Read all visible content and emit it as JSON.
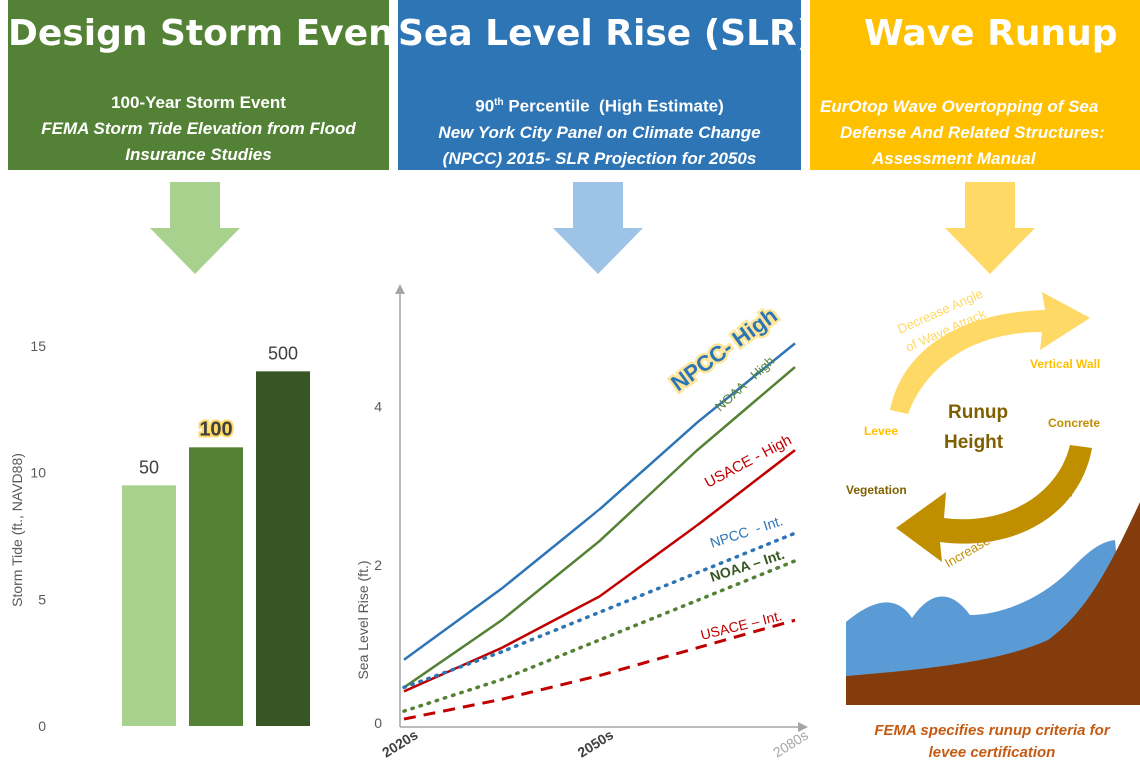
{
  "panels": [
    {
      "title": "Design Storm Event",
      "line1": "100-Year Storm Event",
      "line2": "FEMA Storm Tide Elevation from Flood",
      "line3": "Insurance Studies"
    },
    {
      "title": "Sea Level Rise (SLR)",
      "line1_pre": "90",
      "line1_sup": "th",
      "line1_post": " Percentile  (High Estimate)",
      "line2": "New York City Panel on Climate Change",
      "line3": "(NPCC) 2015- SLR Projection for 2050s"
    },
    {
      "title": "Wave Runup",
      "line1": "EurOtop Wave Overtopping of Sea",
      "line2": "Defense And Related Structures:",
      "line3": "Assessment Manual"
    }
  ],
  "colors": {
    "green_dark": "#538135",
    "blue": "#2e75b6",
    "gold": "#ffc000",
    "arrow_green": "#a9d18e",
    "arrow_blue": "#9dc3e6",
    "arrow_gold": "#ffd966",
    "brown": "#843c0c",
    "water": "#5b9bd5"
  },
  "chart_data": [
    {
      "type": "bar",
      "categories": [
        "50",
        "100",
        "500"
      ],
      "values": [
        9.5,
        11,
        14
      ],
      "data_labels": [
        "50",
        "100",
        "500"
      ],
      "colors": [
        "#a9d18e",
        "#548235",
        "#375623"
      ],
      "ylabel": "Storm Tide (ft., NAVD88)",
      "yticks": [
        0,
        5,
        10,
        15
      ],
      "ylim": [
        0,
        15
      ]
    },
    {
      "type": "line",
      "ylabel": "Sea Level Rise (ft.)",
      "x_tick_labels": [
        "2020s",
        "2050s",
        "2080s"
      ],
      "yticks": [
        0,
        2,
        4
      ],
      "ylim": [
        0,
        5.5
      ],
      "x": [
        0,
        0.25,
        0.5,
        0.75,
        1.0
      ],
      "series": [
        {
          "name": "NPCC- High",
          "style": "solid",
          "color": "#2e75b6",
          "values": [
            0.8,
            1.7,
            2.7,
            3.8,
            4.8
          ]
        },
        {
          "name": "NOAA - High",
          "style": "solid",
          "color": "#548235",
          "values": [
            0.45,
            1.3,
            2.3,
            3.45,
            4.5
          ]
        },
        {
          "name": "USACE - High",
          "style": "solid",
          "color": "#c00000",
          "values": [
            0.4,
            0.95,
            1.6,
            2.5,
            3.45
          ]
        },
        {
          "name": "NPCC  - Int.",
          "style": "dotted",
          "color": "#2e75b6",
          "values": [
            0.45,
            0.9,
            1.4,
            1.9,
            2.4
          ]
        },
        {
          "name": "NOAA – Int.",
          "style": "dotted",
          "color": "#548235",
          "values": [
            0.15,
            0.55,
            1.05,
            1.55,
            2.05
          ]
        },
        {
          "name": "USACE – Int.",
          "style": "dashed",
          "color": "#c00000",
          "values": [
            0.05,
            0.3,
            0.6,
            0.95,
            1.3
          ]
        }
      ]
    }
  ],
  "runup": {
    "decrease_angle": "Decrease Angle",
    "of_wave_attack": "of Wave Attack",
    "vertical_wall": "Vertical Wall",
    "levee": "Levee",
    "runup": "Runup",
    "height": "Height",
    "concrete": "Concrete",
    "vegetation": "Vegetation",
    "increase_friction": "Increase Surface Friction"
  },
  "caption": {
    "line1": "FEMA specifies runup criteria for",
    "line2": "levee certification"
  }
}
